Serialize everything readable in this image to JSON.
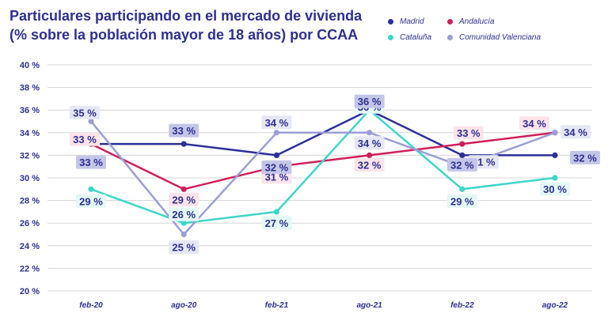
{
  "title_lines": [
    "Particulares participando en el mercado de vivienda",
    "(% sobre la población mayor de 18 años) por CCAA"
  ],
  "colors": {
    "text": "#2d2f8f",
    "grid": "#d5d5d5",
    "madrid": "#2b2f99",
    "andalucia": "#cf1f5a",
    "cataluna": "#3dd6c9",
    "comunidad_valenciana": "#9a9ed6"
  },
  "chart_data": {
    "type": "line",
    "title": "Particulares participando en el mercado de vivienda (% sobre la población mayor de 18 años) por CCAA",
    "categories": [
      "feb-20",
      "ago-20",
      "feb-21",
      "ago-21",
      "feb-22",
      "ago-22"
    ],
    "ylim": [
      20,
      40
    ],
    "yticks": [
      20,
      22,
      24,
      26,
      28,
      30,
      32,
      34,
      36,
      38,
      40
    ],
    "ytick_labels": [
      "20 %",
      "22 %",
      "24 %",
      "26 %",
      "28 %",
      "30 %",
      "32 %",
      "34 %",
      "36 %",
      "38 %",
      "40 %"
    ],
    "grid": true,
    "legend_position": "top-right",
    "series": [
      {
        "name": "Madrid",
        "key": "madrid",
        "values": [
          33,
          33,
          32,
          36,
          32,
          32
        ],
        "labels": [
          "33 %",
          "33 %",
          "32 %",
          "36 %",
          "32 %",
          "32 %"
        ]
      },
      {
        "name": "Andalucía",
        "key": "andalucia",
        "values": [
          33,
          29,
          31,
          32,
          33,
          34
        ],
        "labels": [
          "33 %",
          "29 %",
          "31 %",
          "32 %",
          "33 %",
          "34 %"
        ]
      },
      {
        "name": "Cataluña",
        "key": "cataluna",
        "values": [
          29,
          26,
          27,
          36,
          29,
          30
        ],
        "labels": [
          "29 %",
          "26 %",
          "27 %",
          "36 %",
          "29 %",
          "30 %"
        ]
      },
      {
        "name": "Comunidad Valenciana",
        "key": "comunidad_valenciana",
        "values": [
          35,
          25,
          34,
          34,
          31,
          34
        ],
        "labels": [
          "35 %",
          "25 %",
          "34 %",
          "34 %",
          "31 %",
          "34 %"
        ]
      }
    ]
  }
}
